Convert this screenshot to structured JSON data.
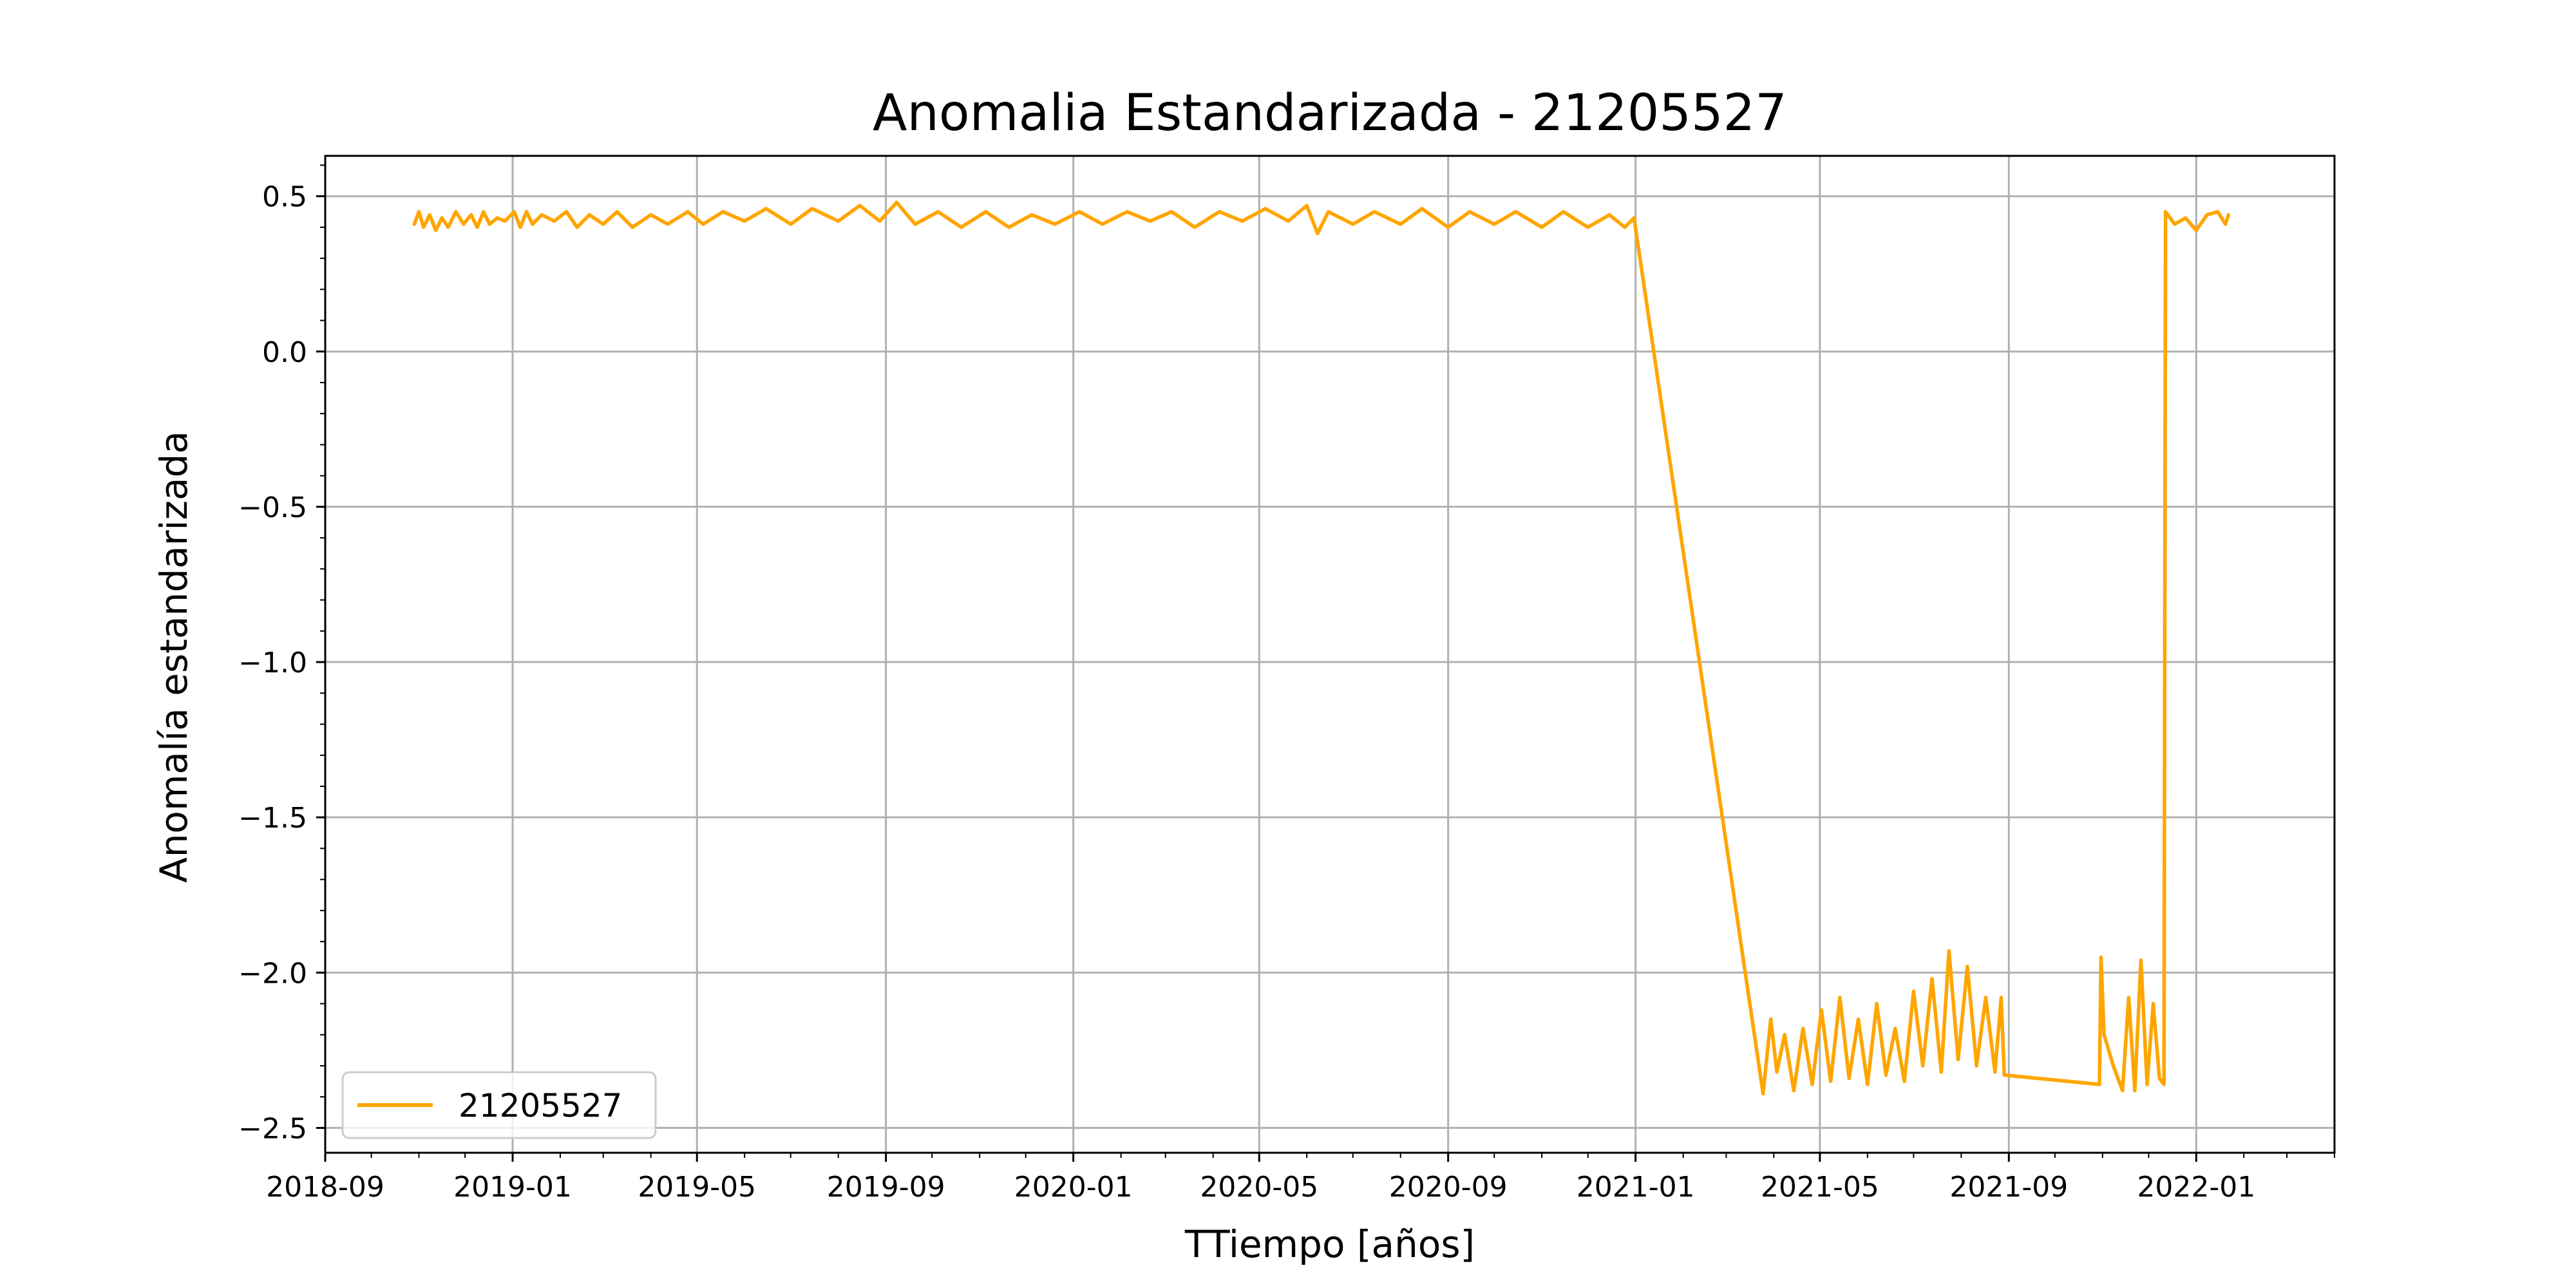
{
  "chart_data": {
    "type": "line",
    "title": "Anomalia Estandarizada - 21205527",
    "xlabel": "TTiempo [años]",
    "ylabel": "Anomalía estandarizada",
    "xlim": [
      "2018-09-01",
      "2022-04-01"
    ],
    "ylim": [
      -2.58,
      0.63
    ],
    "x_ticks": [
      "2018-09",
      "2019-01",
      "2019-05",
      "2019-09",
      "2020-01",
      "2020-05",
      "2020-09",
      "2021-01",
      "2021-05",
      "2021-09",
      "2022-01"
    ],
    "y_ticks": [
      0.5,
      0.0,
      -0.5,
      -1.0,
      -1.5,
      -2.0,
      -2.5
    ],
    "y_tick_labels": [
      "0.5",
      "0.0",
      "−0.5",
      "−1.0",
      "−1.5",
      "−2.0",
      "−2.5"
    ],
    "grid": true,
    "legend_position": "lower-left",
    "series": [
      {
        "name": "21205527",
        "color": "#ffa500",
        "points": [
          [
            "2018-10-29",
            0.41
          ],
          [
            "2018-11-01",
            0.45
          ],
          [
            "2018-11-04",
            0.4
          ],
          [
            "2018-11-08",
            0.44
          ],
          [
            "2018-11-12",
            0.39
          ],
          [
            "2018-11-16",
            0.43
          ],
          [
            "2018-11-20",
            0.4
          ],
          [
            "2018-11-25",
            0.45
          ],
          [
            "2018-11-30",
            0.41
          ],
          [
            "2018-12-05",
            0.44
          ],
          [
            "2018-12-09",
            0.4
          ],
          [
            "2018-12-13",
            0.45
          ],
          [
            "2018-12-17",
            0.41
          ],
          [
            "2018-12-22",
            0.43
          ],
          [
            "2018-12-27",
            0.42
          ],
          [
            "2019-01-02",
            0.45
          ],
          [
            "2019-01-06",
            0.4
          ],
          [
            "2019-01-10",
            0.45
          ],
          [
            "2019-01-14",
            0.41
          ],
          [
            "2019-01-20",
            0.44
          ],
          [
            "2019-01-28",
            0.42
          ],
          [
            "2019-02-05",
            0.45
          ],
          [
            "2019-02-12",
            0.4
          ],
          [
            "2019-02-20",
            0.44
          ],
          [
            "2019-03-01",
            0.41
          ],
          [
            "2019-03-10",
            0.45
          ],
          [
            "2019-03-20",
            0.4
          ],
          [
            "2019-04-01",
            0.44
          ],
          [
            "2019-04-12",
            0.41
          ],
          [
            "2019-04-25",
            0.45
          ],
          [
            "2019-05-05",
            0.41
          ],
          [
            "2019-05-18",
            0.45
          ],
          [
            "2019-06-01",
            0.42
          ],
          [
            "2019-06-15",
            0.46
          ],
          [
            "2019-07-01",
            0.41
          ],
          [
            "2019-07-15",
            0.46
          ],
          [
            "2019-08-01",
            0.42
          ],
          [
            "2019-08-15",
            0.47
          ],
          [
            "2019-08-28",
            0.42
          ],
          [
            "2019-09-08",
            0.48
          ],
          [
            "2019-09-20",
            0.41
          ],
          [
            "2019-10-05",
            0.45
          ],
          [
            "2019-10-20",
            0.4
          ],
          [
            "2019-11-05",
            0.45
          ],
          [
            "2019-11-20",
            0.4
          ],
          [
            "2019-12-05",
            0.44
          ],
          [
            "2019-12-20",
            0.41
          ],
          [
            "2020-01-05",
            0.45
          ],
          [
            "2020-01-20",
            0.41
          ],
          [
            "2020-02-05",
            0.45
          ],
          [
            "2020-02-20",
            0.42
          ],
          [
            "2020-03-05",
            0.45
          ],
          [
            "2020-03-20",
            0.4
          ],
          [
            "2020-04-05",
            0.45
          ],
          [
            "2020-04-20",
            0.42
          ],
          [
            "2020-05-05",
            0.46
          ],
          [
            "2020-05-20",
            0.42
          ],
          [
            "2020-06-01",
            0.47
          ],
          [
            "2020-06-08",
            0.38
          ],
          [
            "2020-06-15",
            0.45
          ],
          [
            "2020-07-01",
            0.41
          ],
          [
            "2020-07-15",
            0.45
          ],
          [
            "2020-08-01",
            0.41
          ],
          [
            "2020-08-15",
            0.46
          ],
          [
            "2020-09-01",
            0.4
          ],
          [
            "2020-09-15",
            0.45
          ],
          [
            "2020-10-01",
            0.41
          ],
          [
            "2020-10-15",
            0.45
          ],
          [
            "2020-11-01",
            0.4
          ],
          [
            "2020-11-15",
            0.45
          ],
          [
            "2020-12-01",
            0.4
          ],
          [
            "2020-12-15",
            0.44
          ],
          [
            "2020-12-25",
            0.4
          ],
          [
            "2020-12-31",
            0.43
          ],
          [
            "2021-03-25",
            -2.39
          ],
          [
            "2021-03-30",
            -2.15
          ],
          [
            "2021-04-03",
            -2.32
          ],
          [
            "2021-04-08",
            -2.2
          ],
          [
            "2021-04-14",
            -2.38
          ],
          [
            "2021-04-20",
            -2.18
          ],
          [
            "2021-04-26",
            -2.36
          ],
          [
            "2021-05-02",
            -2.12
          ],
          [
            "2021-05-08",
            -2.35
          ],
          [
            "2021-05-14",
            -2.08
          ],
          [
            "2021-05-20",
            -2.34
          ],
          [
            "2021-05-26",
            -2.15
          ],
          [
            "2021-06-01",
            -2.36
          ],
          [
            "2021-06-07",
            -2.1
          ],
          [
            "2021-06-13",
            -2.33
          ],
          [
            "2021-06-19",
            -2.18
          ],
          [
            "2021-06-25",
            -2.35
          ],
          [
            "2021-07-01",
            -2.06
          ],
          [
            "2021-07-07",
            -2.3
          ],
          [
            "2021-07-13",
            -2.02
          ],
          [
            "2021-07-19",
            -2.32
          ],
          [
            "2021-07-24",
            -1.93
          ],
          [
            "2021-07-30",
            -2.28
          ],
          [
            "2021-08-05",
            -1.98
          ],
          [
            "2021-08-11",
            -2.3
          ],
          [
            "2021-08-17",
            -2.08
          ],
          [
            "2021-08-23",
            -2.32
          ],
          [
            "2021-08-27",
            -2.08
          ],
          [
            "2021-08-29",
            -2.33
          ],
          [
            "2021-10-30",
            -2.36
          ],
          [
            "2021-10-31",
            -1.95
          ],
          [
            "2021-11-02",
            -2.2
          ],
          [
            "2021-11-08",
            -2.3
          ],
          [
            "2021-11-14",
            -2.38
          ],
          [
            "2021-11-18",
            -2.08
          ],
          [
            "2021-11-22",
            -2.38
          ],
          [
            "2021-11-26",
            -1.96
          ],
          [
            "2021-11-30",
            -2.36
          ],
          [
            "2021-12-04",
            -2.1
          ],
          [
            "2021-12-08",
            -2.34
          ],
          [
            "2021-12-11",
            -2.36
          ],
          [
            "2021-12-12",
            0.45
          ],
          [
            "2021-12-18",
            0.41
          ],
          [
            "2021-12-25",
            0.43
          ],
          [
            "2022-01-01",
            0.39
          ],
          [
            "2022-01-08",
            0.44
          ],
          [
            "2022-01-15",
            0.45
          ],
          [
            "2022-01-20",
            0.41
          ],
          [
            "2022-01-22",
            0.44
          ]
        ]
      }
    ]
  }
}
